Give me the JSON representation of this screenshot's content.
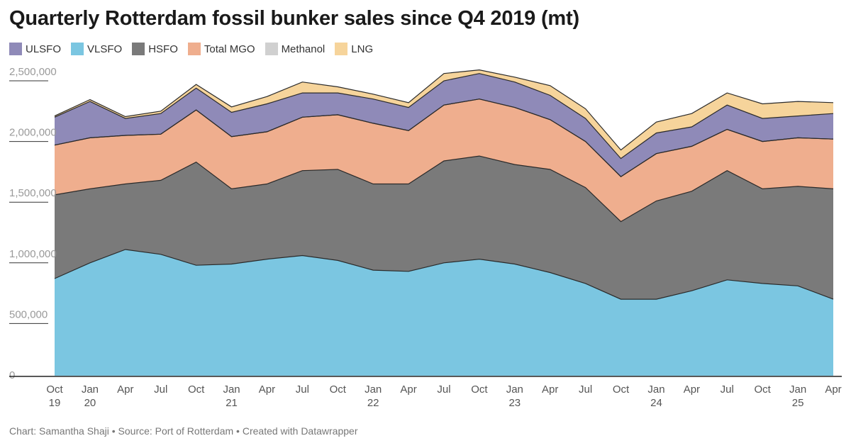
{
  "title": "Quarterly Rotterdam fossil bunker sales since Q4 2019 (mt)",
  "footer": "Chart: Samantha Shaji • Source: Port of Rotterdam • Created with Datawrapper",
  "chart_data": {
    "type": "area",
    "stacked": true,
    "title": "Quarterly Rotterdam fossil bunker sales since Q4 2019 (mt)",
    "xlabel": "",
    "ylabel": "",
    "ylim": [
      0,
      2500000
    ],
    "legend_position": "top-left",
    "grid": false,
    "y_ticks": [
      {
        "value": 0,
        "label": "0"
      },
      {
        "value": 500000,
        "label": "500,000"
      },
      {
        "value": 1000000,
        "label": "1,000,000"
      },
      {
        "value": 1500000,
        "label": "1,500,000"
      },
      {
        "value": 2000000,
        "label": "2,000,000"
      },
      {
        "value": 2500000,
        "label": "2,500,000"
      }
    ],
    "x_labels": [
      {
        "month": "Oct",
        "year": "19"
      },
      {
        "month": "Jan",
        "year": "20"
      },
      {
        "month": "Apr",
        "year": ""
      },
      {
        "month": "Jul",
        "year": ""
      },
      {
        "month": "Oct",
        "year": ""
      },
      {
        "month": "Jan",
        "year": "21"
      },
      {
        "month": "Apr",
        "year": ""
      },
      {
        "month": "Jul",
        "year": ""
      },
      {
        "month": "Oct",
        "year": ""
      },
      {
        "month": "Jan",
        "year": "22"
      },
      {
        "month": "Apr",
        "year": ""
      },
      {
        "month": "Jul",
        "year": ""
      },
      {
        "month": "Oct",
        "year": ""
      },
      {
        "month": "Jan",
        "year": "23"
      },
      {
        "month": "Apr",
        "year": ""
      },
      {
        "month": "Jul",
        "year": ""
      },
      {
        "month": "Oct",
        "year": ""
      },
      {
        "month": "Jan",
        "year": "24"
      },
      {
        "month": "Apr",
        "year": ""
      },
      {
        "month": "Jul",
        "year": ""
      },
      {
        "month": "Oct",
        "year": ""
      },
      {
        "month": "Jan",
        "year": "25"
      },
      {
        "month": "Apr",
        "year": ""
      }
    ],
    "series": [
      {
        "name": "VLSFO",
        "color": "#7bc6e1",
        "values": [
          800000,
          930000,
          1040000,
          1000000,
          910000,
          920000,
          960000,
          990000,
          950000,
          870000,
          860000,
          930000,
          960000,
          920000,
          850000,
          760000,
          630000,
          630000,
          700000,
          790000,
          760000,
          740000,
          630000
        ]
      },
      {
        "name": "HSFO",
        "color": "#7a7a7a",
        "values": [
          690000,
          610000,
          540000,
          610000,
          850000,
          620000,
          620000,
          700000,
          750000,
          710000,
          720000,
          840000,
          850000,
          820000,
          850000,
          790000,
          640000,
          810000,
          820000,
          900000,
          780000,
          820000,
          910000
        ]
      },
      {
        "name": "Total MGO",
        "color": "#efae8e",
        "values": [
          410000,
          420000,
          400000,
          380000,
          430000,
          430000,
          430000,
          440000,
          450000,
          500000,
          440000,
          460000,
          470000,
          470000,
          410000,
          380000,
          370000,
          390000,
          370000,
          340000,
          390000,
          400000,
          410000
        ]
      },
      {
        "name": "Methanol",
        "color": "#d0d0d0",
        "values": [
          0,
          0,
          0,
          0,
          0,
          0,
          0,
          0,
          0,
          0,
          0,
          0,
          0,
          0,
          0,
          0,
          0,
          0,
          0,
          0,
          0,
          0,
          0
        ]
      },
      {
        "name": "ULSFO",
        "color": "#8f8ab8",
        "values": [
          230000,
          300000,
          140000,
          170000,
          180000,
          200000,
          230000,
          200000,
          180000,
          200000,
          190000,
          200000,
          210000,
          210000,
          200000,
          190000,
          150000,
          170000,
          160000,
          200000,
          190000,
          180000,
          210000
        ]
      },
      {
        "name": "LNG",
        "color": "#f6d49b",
        "values": [
          10000,
          15000,
          15000,
          20000,
          30000,
          45000,
          60000,
          90000,
          50000,
          40000,
          40000,
          60000,
          30000,
          40000,
          80000,
          80000,
          70000,
          90000,
          110000,
          100000,
          120000,
          120000,
          90000
        ]
      }
    ]
  },
  "legend": [
    {
      "label": "ULSFO",
      "color": "#8f8ab8"
    },
    {
      "label": "VLSFO",
      "color": "#7bc6e1"
    },
    {
      "label": "HSFO",
      "color": "#7a7a7a"
    },
    {
      "label": "Total MGO",
      "color": "#efae8e"
    },
    {
      "label": "Methanol",
      "color": "#d0d0d0"
    },
    {
      "label": "LNG",
      "color": "#f6d49b"
    }
  ]
}
